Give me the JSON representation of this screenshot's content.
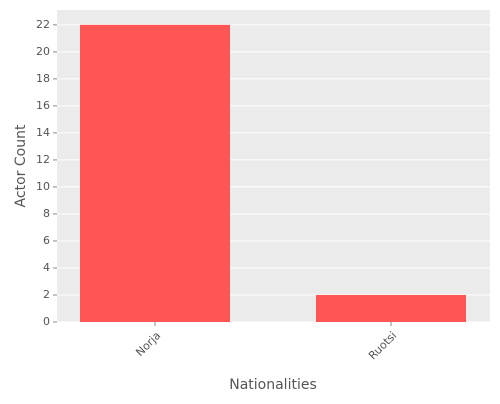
{
  "chart_data": {
    "type": "bar",
    "categories": [
      "Norja",
      "Ruotsi"
    ],
    "values": [
      22,
      2
    ],
    "color": "#ff5555",
    "x_label": "Nationalities",
    "y_label": "Actor Count",
    "ylim": [
      0,
      23.1
    ],
    "yticks": [
      0,
      2,
      4,
      6,
      8,
      10,
      12,
      14,
      16,
      18,
      20,
      22
    ],
    "grid": true
  }
}
